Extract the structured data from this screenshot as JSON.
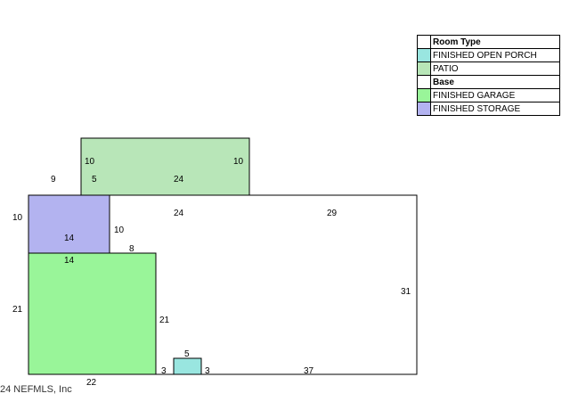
{
  "legend": {
    "header": "Room Type",
    "items": [
      {
        "label": "FINISHED OPEN PORCH",
        "color": "#99e6e0"
      },
      {
        "label": "PATIO",
        "color": "#b8e6b8"
      },
      {
        "label": "Base",
        "color": "#ffffff"
      },
      {
        "label": "FINISHED GARAGE",
        "color": "#99f599"
      },
      {
        "label": "FINISHED STORAGE",
        "color": "#b3b3f0"
      }
    ]
  },
  "dimensions": {
    "patio_left": "10",
    "patio_right": "10",
    "patio_inner_left": "5",
    "patio_inner_top": "24",
    "outer_9": "9",
    "base_24": "24",
    "base_29": "29",
    "storage_left": "10",
    "storage_inner": "14",
    "storage_right": "10",
    "step_8": "8",
    "garage_top": "14",
    "garage_left": "21",
    "garage_right": "21",
    "base_right": "31",
    "porch_top": "5",
    "porch_left": "3",
    "porch_right": "3",
    "base_bottom": "37",
    "garage_bottom": "22"
  },
  "copyright": "24 NEFMLS, Inc"
}
